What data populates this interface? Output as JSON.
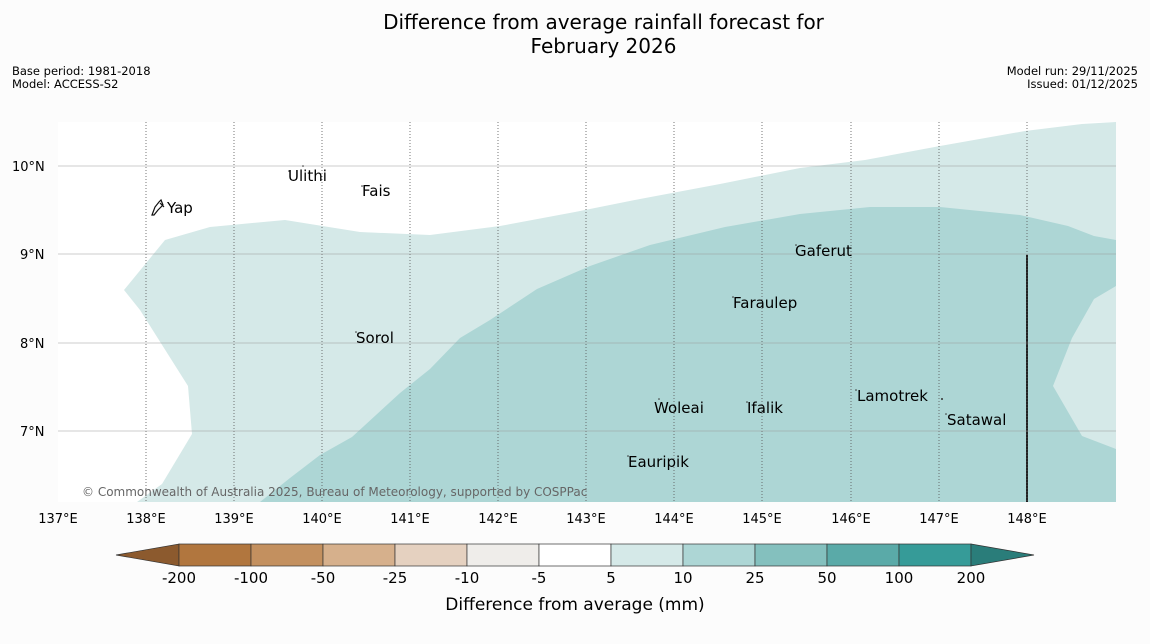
{
  "title": {
    "line1": "Difference from average rainfall forecast for",
    "line2": "February 2026"
  },
  "meta_left": {
    "base_period": "Base period: 1981-2018",
    "model": "Model: ACCESS-S2"
  },
  "meta_right": {
    "model_run": "Model run: 29/11/2025",
    "issued": "Issued: 01/12/2025"
  },
  "map": {
    "lon_labels": [
      "137°E",
      "138°E",
      "139°E",
      "140°E",
      "141°E",
      "142°E",
      "143°E",
      "144°E",
      "145°E",
      "146°E",
      "147°E",
      "148°E"
    ],
    "lat_labels": [
      "10°N",
      "9°N",
      "8°N",
      "7°N"
    ],
    "places": [
      "Yap",
      "Ulithi",
      "Fais",
      "Sorol",
      "Gaferut",
      "Faraulep",
      "Woleai",
      "Ifalik",
      "Lamotrek",
      "Satawal",
      "Eauripik"
    ],
    "copyright": "© Commonwealth of Australia 2025, Bureau of Meteorology, supported by COSPPac"
  },
  "legend": {
    "labels": [
      "-200",
      "-100",
      "-50",
      "-25",
      "-10",
      "-5",
      "5",
      "10",
      "25",
      "50",
      "100",
      "200"
    ],
    "colors": [
      "#8c5a2e",
      "#b1763e",
      "#c3905f",
      "#d6b08c",
      "#e5d1c0",
      "#efedea",
      "#ffffff",
      "#d5e9e8",
      "#add6d5",
      "#84c0be",
      "#5aaaa8",
      "#369b98",
      "#2a7d7a"
    ],
    "title": "Difference from average (mm)"
  }
}
